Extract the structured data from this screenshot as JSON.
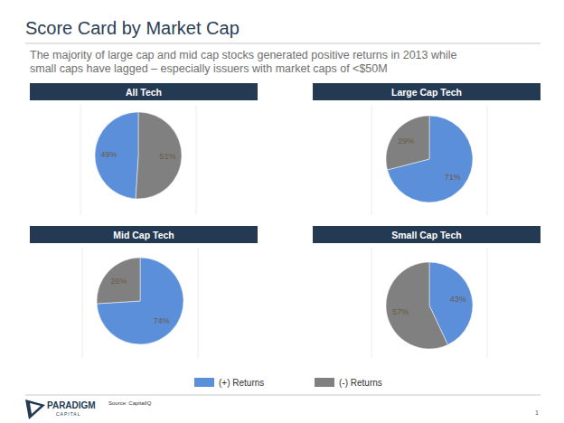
{
  "title": "Score Card by Market Cap",
  "subtitle": [
    "The majority of large cap and mid cap stocks generated positive returns in 2013 while",
    "small caps have lagged – especially issuers with market caps of <$50M"
  ],
  "chart_data": [
    {
      "type": "pie",
      "title": "All Tech",
      "categories": [
        "(-) Returns",
        "(+) Returns"
      ],
      "values": [
        51,
        49
      ],
      "value_labels": [
        "51%",
        "49%"
      ],
      "colors": [
        "#808080",
        "#5b8fd9"
      ],
      "data_labels": true
    },
    {
      "type": "pie",
      "title": "Large Cap Tech",
      "categories": [
        "(+) Returns",
        "(-) Returns"
      ],
      "values": [
        71,
        29
      ],
      "value_labels": [
        "71%",
        "29%"
      ],
      "colors": [
        "#5b8fd9",
        "#808080"
      ],
      "data_labels": true,
      "legend": "bottom"
    },
    {
      "type": "pie",
      "title": "Mid Cap Tech",
      "categories": [
        "(+) Returns",
        "(-) Returns"
      ],
      "values": [
        74,
        26
      ],
      "value_labels": [
        "74%",
        "26%"
      ],
      "colors": [
        "#5b8fd9",
        "#808080"
      ],
      "data_labels": true
    },
    {
      "type": "pie",
      "title": "Small Cap Tech",
      "categories": [
        "(+) Returns",
        "(-) Returns"
      ],
      "values": [
        43,
        57
      ],
      "value_labels": [
        "43%",
        "57%"
      ],
      "colors": [
        "#5b8fd9",
        "#808080"
      ],
      "data_labels": true
    }
  ],
  "footer": {
    "logo": [
      "PARADIGM",
      "CAPITAL"
    ],
    "source": "Source: CapitalIQ",
    "page_number": "1"
  }
}
